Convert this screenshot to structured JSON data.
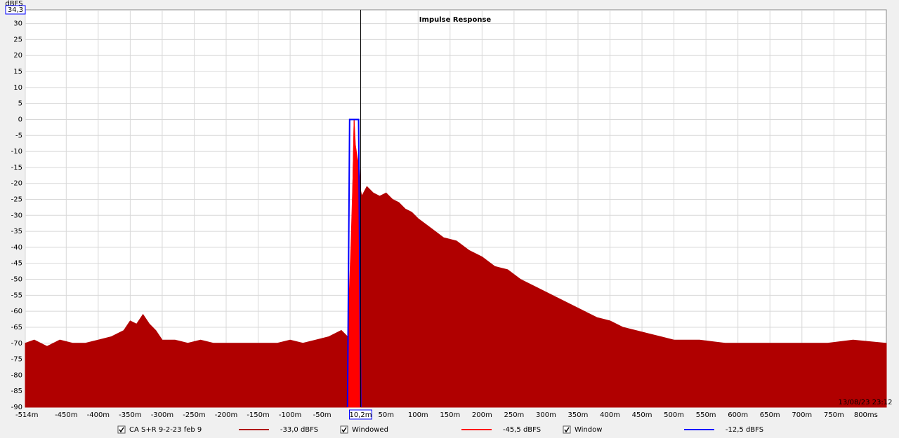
{
  "chart_data": {
    "type": "area",
    "title": "Impulse Response",
    "y_unit": "dBFS",
    "y_top_label": "34,3",
    "timestamp": "13/08/23 23:12",
    "cursor": {
      "x": 10.2,
      "label": "10,2m"
    },
    "xlim": [
      -514,
      832
    ],
    "ylim": [
      -90,
      34.3
    ],
    "grid": true,
    "xticks": [
      {
        "value": -514,
        "label": "-514m"
      },
      {
        "value": -450,
        "label": "-450m"
      },
      {
        "value": -400,
        "label": "-400m"
      },
      {
        "value": -350,
        "label": "-350m"
      },
      {
        "value": -300,
        "label": "-300m"
      },
      {
        "value": -250,
        "label": "-250m"
      },
      {
        "value": -200,
        "label": "-200m"
      },
      {
        "value": -150,
        "label": "-150m"
      },
      {
        "value": -100,
        "label": "-100m"
      },
      {
        "value": -50,
        "label": "-50m"
      },
      {
        "value": 50,
        "label": "50m"
      },
      {
        "value": 100,
        "label": "100m"
      },
      {
        "value": 150,
        "label": "150m"
      },
      {
        "value": 200,
        "label": "200m"
      },
      {
        "value": 250,
        "label": "250m"
      },
      {
        "value": 300,
        "label": "300m"
      },
      {
        "value": 350,
        "label": "350m"
      },
      {
        "value": 400,
        "label": "400m"
      },
      {
        "value": 450,
        "label": "450m"
      },
      {
        "value": 500,
        "label": "500m"
      },
      {
        "value": 550,
        "label": "550m"
      },
      {
        "value": 600,
        "label": "600m"
      },
      {
        "value": 650,
        "label": "650m"
      },
      {
        "value": 700,
        "label": "700m"
      },
      {
        "value": 750,
        "label": "750m"
      },
      {
        "value": 800,
        "label": "800ms"
      }
    ],
    "yticks": [
      30,
      25,
      20,
      15,
      10,
      5,
      0,
      -5,
      -10,
      -15,
      -20,
      -25,
      -30,
      -35,
      -40,
      -45,
      -50,
      -55,
      -60,
      -65,
      -70,
      -75,
      -80,
      -85,
      -90
    ],
    "series": [
      {
        "name": "CA S+R 9-2-23 feb 9",
        "color": "#b00000",
        "level": "-33,0 dBFS",
        "fill": true,
        "x": [
          -514,
          -500,
          -480,
          -460,
          -440,
          -420,
          -400,
          -380,
          -360,
          -350,
          -340,
          -330,
          -320,
          -310,
          -300,
          -280,
          -260,
          -240,
          -220,
          -200,
          -180,
          -160,
          -140,
          -120,
          -100,
          -80,
          -60,
          -40,
          -20,
          -10,
          -5,
          -2,
          0,
          2,
          5,
          8,
          10,
          12,
          20,
          30,
          40,
          50,
          60,
          70,
          80,
          90,
          100,
          120,
          140,
          160,
          180,
          200,
          220,
          240,
          260,
          280,
          300,
          320,
          340,
          360,
          380,
          400,
          420,
          440,
          460,
          480,
          500,
          540,
          580,
          620,
          660,
          700,
          740,
          780,
          832
        ],
        "values": [
          -70,
          -69,
          -71,
          -69,
          -70,
          -70,
          -69,
          -68,
          -66,
          -63,
          -64,
          -61,
          -64,
          -66,
          -69,
          -69,
          -70,
          -69,
          -70,
          -70,
          -70,
          -70,
          -70,
          -70,
          -69,
          -70,
          -69,
          -68,
          -66,
          -68,
          -55,
          -20,
          0,
          -20,
          -12,
          -18,
          -22,
          -24,
          -21,
          -23,
          -24,
          -23,
          -25,
          -26,
          -28,
          -29,
          -31,
          -34,
          -37,
          -38,
          -41,
          -43,
          -46,
          -47,
          -50,
          -52,
          -54,
          -56,
          -58,
          -60,
          -62,
          -63,
          -65,
          -66,
          -67,
          -68,
          -69,
          -69,
          -70,
          -70,
          -70,
          -70,
          -70,
          -69,
          -70
        ]
      },
      {
        "name": "Windowed",
        "color": "#ff0000",
        "level": "-45,5 dBFS",
        "fill": true,
        "x": [
          -10,
          -5,
          -2,
          0,
          2,
          5,
          8,
          10
        ],
        "values": [
          -68,
          -40,
          -20,
          0,
          -8,
          -12,
          -15,
          -20
        ]
      },
      {
        "name": "Window",
        "color": "#0000ff",
        "level": "-12,5 dBFS",
        "fill": false,
        "x": [
          -10.3,
          -7,
          7,
          10.5
        ],
        "values": [
          -90,
          0,
          0,
          -90
        ]
      }
    ]
  }
}
